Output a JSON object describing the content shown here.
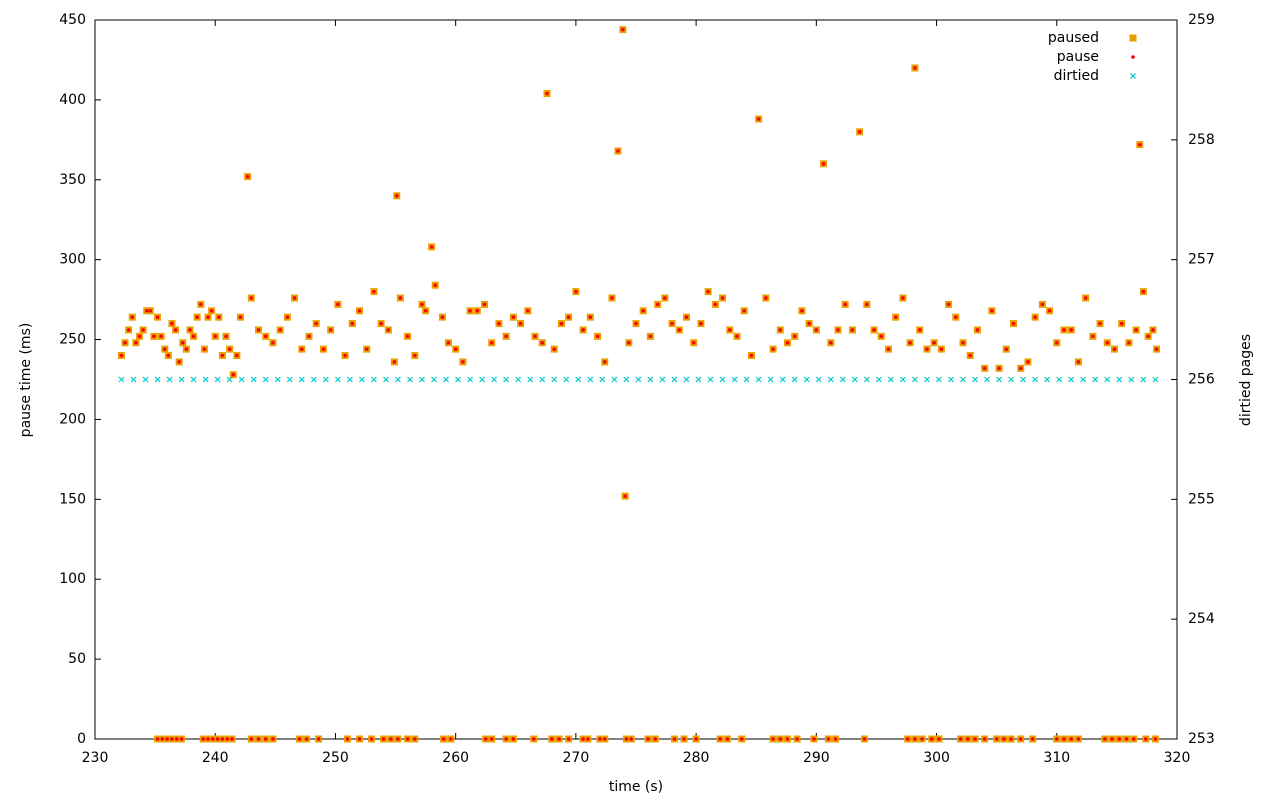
{
  "chart_data": {
    "type": "scatter",
    "xlabel": "time (s)",
    "ylabel": "pause time (ms)",
    "y2label": "dirtied pages",
    "xlim": [
      230,
      320
    ],
    "xticks": [
      230,
      240,
      250,
      260,
      270,
      280,
      290,
      300,
      310,
      320
    ],
    "ylim": [
      0,
      450
    ],
    "yticks": [
      0,
      50,
      100,
      150,
      200,
      250,
      300,
      350,
      400,
      450
    ],
    "y2lim": [
      253,
      259
    ],
    "y2ticks": [
      253,
      254,
      255,
      256,
      257,
      258,
      259
    ],
    "grid": false,
    "legend": "top-right",
    "series": [
      {
        "name": "paused",
        "color": "#e8a000",
        "marker": "square",
        "x": [
          232.2,
          232.5,
          232.8,
          233.1,
          233.4,
          233.7,
          234.0,
          234.3,
          234.6,
          234.9,
          235.2,
          235.5,
          235.8,
          236.1,
          236.4,
          236.7,
          237.0,
          237.3,
          237.6,
          237.9,
          238.2,
          238.5,
          238.8,
          239.1,
          239.4,
          239.7,
          240.0,
          240.3,
          240.6,
          240.9,
          241.2,
          241.5,
          241.8,
          242.1,
          242.7,
          243.0,
          243.6,
          244.2,
          244.8,
          245.4,
          246.0,
          246.6,
          247.2,
          247.8,
          248.4,
          249.0,
          249.6,
          250.2,
          250.8,
          251.4,
          252.0,
          252.6,
          253.2,
          253.8,
          254.4,
          254.9,
          255.1,
          255.4,
          256.0,
          256.6,
          257.2,
          257.5,
          258.0,
          258.3,
          258.9,
          259.4,
          260.0,
          260.6,
          261.2,
          261.8,
          262.4,
          263.0,
          263.6,
          264.2,
          264.8,
          265.4,
          266.0,
          266.6,
          267.2,
          267.6,
          268.2,
          268.8,
          269.4,
          270.0,
          270.6,
          271.2,
          271.8,
          272.4,
          273.0,
          273.5,
          273.9,
          274.1,
          274.4,
          275.0,
          275.6,
          276.2,
          276.8,
          277.4,
          278.0,
          278.6,
          279.2,
          279.8,
          280.4,
          281.0,
          281.6,
          282.2,
          282.8,
          283.4,
          284.0,
          284.6,
          285.2,
          285.8,
          286.4,
          287.0,
          287.6,
          288.2,
          288.8,
          289.4,
          290.0,
          290.6,
          291.2,
          291.8,
          292.4,
          293.0,
          293.6,
          294.2,
          294.8,
          295.4,
          296.0,
          296.6,
          297.2,
          297.8,
          298.2,
          298.6,
          299.2,
          299.8,
          300.4,
          301.0,
          301.6,
          302.2,
          302.8,
          303.4,
          304.0,
          304.6,
          305.2,
          305.8,
          306.4,
          307.0,
          307.6,
          308.2,
          308.8,
          309.4,
          310.0,
          310.6,
          311.2,
          311.8,
          312.4,
          313.0,
          313.6,
          314.2,
          314.8,
          315.4,
          316.0,
          316.6,
          316.9,
          317.2,
          317.6,
          318.0,
          318.3,
          235.2,
          235.6,
          236.0,
          236.4,
          236.8,
          237.2,
          239.0,
          239.4,
          239.8,
          240.2,
          240.6,
          241.0,
          241.4,
          243.0,
          243.6,
          244.2,
          244.8,
          247.0,
          247.6,
          248.6,
          251.0,
          252.0,
          253.0,
          254.0,
          254.6,
          255.2,
          256.0,
          256.6,
          259.0,
          259.6,
          262.5,
          263.0,
          264.2,
          264.8,
          266.5,
          268.0,
          268.6,
          269.4,
          270.6,
          271.0,
          272.0,
          272.4,
          274.2,
          274.6,
          276.0,
          276.6,
          278.2,
          279.0,
          280.0,
          282.0,
          282.6,
          283.8,
          286.4,
          287.0,
          287.6,
          288.4,
          289.8,
          291.0,
          291.6,
          294.0,
          297.6,
          298.2,
          298.8,
          299.6,
          300.2,
          302.0,
          302.6,
          303.2,
          304.0,
          305.0,
          305.6,
          306.2,
          307.0,
          308.0,
          310.0,
          310.6,
          311.2,
          311.8,
          314.0,
          314.6,
          315.2,
          315.8,
          316.4,
          317.4,
          318.2
        ],
        "values": [
          240,
          248,
          256,
          264,
          248,
          252,
          256,
          268,
          268,
          252,
          264,
          252,
          244,
          240,
          260,
          256,
          236,
          248,
          244,
          256,
          252,
          264,
          272,
          244,
          264,
          268,
          252,
          264,
          240,
          252,
          244,
          228,
          240,
          264,
          352,
          276,
          256,
          252,
          248,
          256,
          264,
          276,
          244,
          252,
          260,
          244,
          256,
          272,
          240,
          260,
          268,
          244,
          280,
          260,
          256,
          236,
          340,
          276,
          252,
          240,
          272,
          268,
          308,
          284,
          264,
          248,
          244,
          236,
          268,
          268,
          272,
          248,
          260,
          252,
          264,
          260,
          268,
          252,
          248,
          404,
          244,
          260,
          264,
          280,
          256,
          264,
          252,
          236,
          276,
          368,
          444,
          152,
          248,
          260,
          268,
          252,
          272,
          276,
          260,
          256,
          264,
          248,
          260,
          280,
          272,
          276,
          256,
          252,
          268,
          240,
          388,
          276,
          244,
          256,
          248,
          252,
          268,
          260,
          256,
          360,
          248,
          256,
          272,
          256,
          380,
          272,
          256,
          252,
          244,
          264,
          276,
          248,
          420,
          256,
          244,
          248,
          244,
          272,
          264,
          248,
          240,
          256,
          232,
          268,
          232,
          244,
          260,
          232,
          236,
          264,
          272,
          268,
          248,
          256,
          256,
          236,
          276,
          252,
          260,
          248,
          244,
          260,
          248,
          256,
          372,
          280,
          252,
          256,
          244,
          0,
          0,
          0,
          0,
          0,
          0,
          0,
          0,
          0,
          0,
          0,
          0,
          0,
          0,
          0,
          0,
          0,
          0,
          0,
          0,
          0,
          0,
          0,
          0,
          0,
          0,
          0,
          0,
          0,
          0,
          0,
          0,
          0,
          0,
          0,
          0,
          0,
          0,
          0,
          0,
          0,
          0,
          0,
          0,
          0,
          0,
          0,
          0,
          0,
          0,
          0,
          0,
          0,
          0,
          0,
          0,
          0,
          0,
          0,
          0,
          0,
          0,
          0,
          0,
          0,
          0,
          0,
          0,
          0,
          0,
          0,
          0,
          0,
          0,
          0,
          0,
          0,
          0,
          0,
          0,
          0,
          0,
          0,
          0,
          0
        ]
      },
      {
        "name": "pause",
        "color": "#ff0000",
        "marker": "dot",
        "x": [
          232.2,
          232.5,
          232.8,
          233.1,
          233.4,
          233.7,
          234.0,
          234.3,
          234.6,
          234.9,
          235.2,
          235.5,
          235.8,
          236.1,
          236.4,
          236.7,
          237.0,
          237.3,
          237.6,
          237.9,
          238.2,
          238.5,
          238.8,
          239.1,
          239.4,
          239.7,
          240.0,
          240.3,
          240.6,
          240.9,
          241.2,
          241.5,
          241.8,
          242.1,
          242.7,
          243.0,
          243.6,
          244.2,
          244.8,
          245.4,
          246.0,
          246.6,
          247.2,
          247.8,
          248.4,
          249.0,
          249.6,
          250.2,
          250.8,
          251.4,
          252.0,
          252.6,
          253.2,
          253.8,
          254.4,
          254.9,
          255.1,
          255.4,
          256.0,
          256.6,
          257.2,
          257.5,
          258.0,
          258.3,
          258.9,
          259.4,
          260.0,
          260.6,
          261.2,
          261.8,
          262.4,
          263.0,
          263.6,
          264.2,
          264.8,
          265.4,
          266.0,
          266.6,
          267.2,
          267.6,
          268.2,
          268.8,
          269.4,
          270.0,
          270.6,
          271.2,
          271.8,
          272.4,
          273.0,
          273.5,
          273.9,
          274.1,
          274.4,
          275.0,
          275.6,
          276.2,
          276.8,
          277.4,
          278.0,
          278.6,
          279.2,
          279.8,
          280.4,
          281.0,
          281.6,
          282.2,
          282.8,
          283.4,
          284.0,
          284.6,
          285.2,
          285.8,
          286.4,
          287.0,
          287.6,
          288.2,
          288.8,
          289.4,
          290.0,
          290.6,
          291.2,
          291.8,
          292.4,
          293.0,
          293.6,
          294.2,
          294.8,
          295.4,
          296.0,
          296.6,
          297.2,
          297.8,
          298.2,
          298.6,
          299.2,
          299.8,
          300.4,
          301.0,
          301.6,
          302.2,
          302.8,
          303.4,
          304.0,
          304.6,
          305.2,
          305.8,
          306.4,
          307.0,
          307.6,
          308.2,
          308.8,
          309.4,
          310.0,
          310.6,
          311.2,
          311.8,
          312.4,
          313.0,
          313.6,
          314.2,
          314.8,
          315.4,
          316.0,
          316.6,
          316.9,
          317.2,
          317.6,
          318.0,
          318.3,
          235.2,
          235.6,
          236.0,
          236.4,
          236.8,
          237.2,
          239.0,
          239.4,
          239.8,
          240.2,
          240.6,
          241.0,
          241.4,
          243.0,
          243.6,
          244.2,
          244.8,
          247.0,
          247.6,
          248.6,
          251.0,
          252.0,
          253.0,
          254.0,
          254.6,
          255.2,
          256.0,
          256.6,
          259.0,
          259.6,
          262.5,
          263.0,
          264.2,
          264.8,
          266.5,
          268.0,
          268.6,
          269.4,
          270.6,
          271.0,
          272.0,
          272.4,
          274.2,
          274.6,
          276.0,
          276.6,
          278.2,
          279.0,
          280.0,
          282.0,
          282.6,
          283.8,
          286.4,
          287.0,
          287.6,
          288.4,
          289.8,
          291.0,
          291.6,
          294.0,
          297.6,
          298.2,
          298.8,
          299.6,
          300.2,
          302.0,
          302.6,
          303.2,
          304.0,
          305.0,
          305.6,
          306.2,
          307.0,
          308.0,
          310.0,
          310.6,
          311.2,
          311.8,
          314.0,
          314.6,
          315.2,
          315.8,
          316.4,
          317.4,
          318.2
        ],
        "values": [
          240,
          248,
          256,
          264,
          248,
          252,
          256,
          268,
          268,
          252,
          264,
          252,
          244,
          240,
          260,
          256,
          236,
          248,
          244,
          256,
          252,
          264,
          272,
          244,
          264,
          268,
          252,
          264,
          240,
          252,
          244,
          228,
          240,
          264,
          352,
          276,
          256,
          252,
          248,
          256,
          264,
          276,
          244,
          252,
          260,
          244,
          256,
          272,
          240,
          260,
          268,
          244,
          280,
          260,
          256,
          236,
          340,
          276,
          252,
          240,
          272,
          268,
          308,
          284,
          264,
          248,
          244,
          236,
          268,
          268,
          272,
          248,
          260,
          252,
          264,
          260,
          268,
          252,
          248,
          404,
          244,
          260,
          264,
          280,
          256,
          264,
          252,
          236,
          276,
          368,
          444,
          152,
          248,
          260,
          268,
          252,
          272,
          276,
          260,
          256,
          264,
          248,
          260,
          280,
          272,
          276,
          256,
          252,
          268,
          240,
          388,
          276,
          244,
          256,
          248,
          252,
          268,
          260,
          256,
          360,
          248,
          256,
          272,
          256,
          380,
          272,
          256,
          252,
          244,
          264,
          276,
          248,
          420,
          256,
          244,
          248,
          244,
          272,
          264,
          248,
          240,
          256,
          232,
          268,
          232,
          244,
          260,
          232,
          236,
          264,
          272,
          268,
          248,
          256,
          256,
          236,
          276,
          252,
          260,
          248,
          244,
          260,
          248,
          256,
          372,
          280,
          252,
          256,
          244,
          0,
          0,
          0,
          0,
          0,
          0,
          0,
          0,
          0,
          0,
          0,
          0,
          0,
          0,
          0,
          0,
          0,
          0,
          0,
          0,
          0,
          0,
          0,
          0,
          0,
          0,
          0,
          0,
          0,
          0,
          0,
          0,
          0,
          0,
          0,
          0,
          0,
          0,
          0,
          0,
          0,
          0,
          0,
          0,
          0,
          0,
          0,
          0,
          0,
          0,
          0,
          0,
          0,
          0,
          0,
          0,
          0,
          0,
          0,
          0,
          0,
          0,
          0,
          0,
          0,
          0,
          0,
          0,
          0,
          0,
          0,
          0,
          0,
          0,
          0,
          0,
          0,
          0,
          0,
          0,
          0,
          0,
          0,
          0,
          0
        ]
      },
      {
        "name": "dirtied",
        "color": "#00c8c8",
        "marker": "cross",
        "axis": "y2",
        "x": [
          232.2,
          233.2,
          234.2,
          235.2,
          236.2,
          237.2,
          238.2,
          239.2,
          240.2,
          241.2,
          242.2,
          243.2,
          244.2,
          245.2,
          246.2,
          247.2,
          248.2,
          249.2,
          250.2,
          251.2,
          252.2,
          253.2,
          254.2,
          255.2,
          256.2,
          257.2,
          258.2,
          259.2,
          260.2,
          261.2,
          262.2,
          263.2,
          264.2,
          265.2,
          266.2,
          267.2,
          268.2,
          269.2,
          270.2,
          271.2,
          272.2,
          273.2,
          274.2,
          275.2,
          276.2,
          277.2,
          278.2,
          279.2,
          280.2,
          281.2,
          282.2,
          283.2,
          284.2,
          285.2,
          286.2,
          287.2,
          288.2,
          289.2,
          290.2,
          291.2,
          292.2,
          293.2,
          294.2,
          295.2,
          296.2,
          297.2,
          298.2,
          299.2,
          300.2,
          301.2,
          302.2,
          303.2,
          304.2,
          305.2,
          306.2,
          307.2,
          308.2,
          309.2,
          310.2,
          311.2,
          312.2,
          313.2,
          314.2,
          315.2,
          316.2,
          317.2,
          318.2
        ],
        "values": [
          256,
          256,
          256,
          256,
          256,
          256,
          256,
          256,
          256,
          256,
          256,
          256,
          256,
          256,
          256,
          256,
          256,
          256,
          256,
          256,
          256,
          256,
          256,
          256,
          256,
          256,
          256,
          256,
          256,
          256,
          256,
          256,
          256,
          256,
          256,
          256,
          256,
          256,
          256,
          256,
          256,
          256,
          256,
          256,
          256,
          256,
          256,
          256,
          256,
          256,
          256,
          256,
          256,
          256,
          256,
          256,
          256,
          256,
          256,
          256,
          256,
          256,
          256,
          256,
          256,
          256,
          256,
          256,
          256,
          256,
          256,
          256,
          256,
          256,
          256,
          256,
          256,
          256,
          256,
          256,
          256,
          256,
          256,
          256,
          256,
          256,
          256
        ]
      }
    ]
  }
}
